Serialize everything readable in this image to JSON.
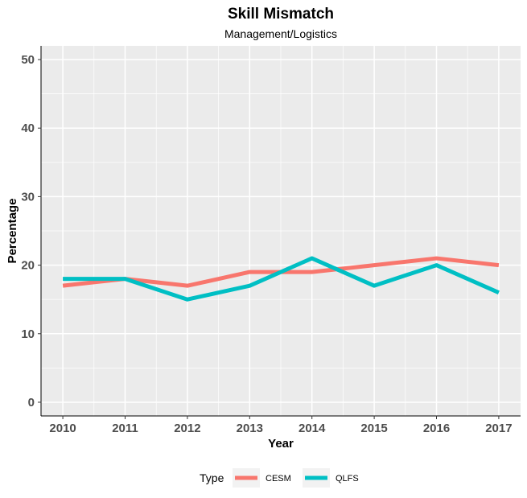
{
  "chart_data": {
    "type": "line",
    "title": "Skill Mismatch",
    "subtitle": "Management/Logistics",
    "xlabel": "Year",
    "ylabel": "Percentage",
    "x": [
      2010,
      2011,
      2012,
      2013,
      2014,
      2015,
      2016,
      2017
    ],
    "x_ticks": [
      "2010",
      "2011",
      "2012",
      "2013",
      "2014",
      "2015",
      "2016",
      "2017"
    ],
    "y_ticks": [
      "0",
      "10",
      "20",
      "30",
      "40",
      "50"
    ],
    "xlim": [
      2009.65,
      2017.35
    ],
    "ylim": [
      -2,
      52
    ],
    "grid": true,
    "legend": {
      "title": "Type",
      "position": "bottom"
    },
    "series": [
      {
        "name": "CESM",
        "color": "#f8766d",
        "values": [
          17,
          18,
          17,
          19,
          19,
          20,
          21,
          20
        ]
      },
      {
        "name": "QLFS",
        "color": "#00bfc4",
        "values": [
          18,
          18,
          15,
          17,
          21,
          17,
          20,
          16
        ]
      }
    ]
  },
  "style": {
    "panel_background": "#ebebeb",
    "grid_color": "#ffffff",
    "axis_line_color": "#000000",
    "tick_label_color": "#4d4d4d"
  }
}
